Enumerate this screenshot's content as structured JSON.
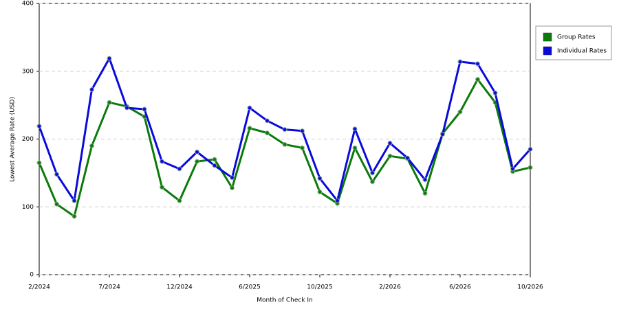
{
  "chart_data": {
    "type": "line",
    "x_label": "Month of Check In",
    "y_label": "Lowest Average Rate (USD)",
    "categories": [
      "2/2024",
      null,
      null,
      null,
      "7/2024",
      null,
      null,
      null,
      "12/2024",
      null,
      null,
      null,
      "6/2025",
      null,
      null,
      null,
      "10/2025",
      null,
      null,
      null,
      "2/2026",
      null,
      null,
      null,
      "6/2026",
      null,
      null,
      null,
      "10/2026"
    ],
    "series": [
      {
        "name": "Group Rates",
        "color": "#0a7a0a",
        "values": [
          165,
          104,
          86,
          190,
          254,
          248,
          233,
          129,
          109,
          167,
          170,
          128,
          216,
          209,
          192,
          187,
          122,
          105,
          187,
          137,
          175,
          171,
          120,
          208,
          240,
          288,
          254,
          152,
          158
        ]
      },
      {
        "name": "Individual Rates",
        "color": "#0a0adc",
        "values": [
          219,
          148,
          109,
          273,
          319,
          246,
          244,
          167,
          156,
          181,
          161,
          143,
          246,
          227,
          214,
          212,
          142,
          109,
          215,
          150,
          194,
          172,
          140,
          207,
          314,
          311,
          268,
          156,
          185
        ]
      }
    ],
    "ylim": [
      0,
      400
    ],
    "yticks": [
      0,
      100,
      200,
      300,
      400
    ],
    "grid": true
  }
}
